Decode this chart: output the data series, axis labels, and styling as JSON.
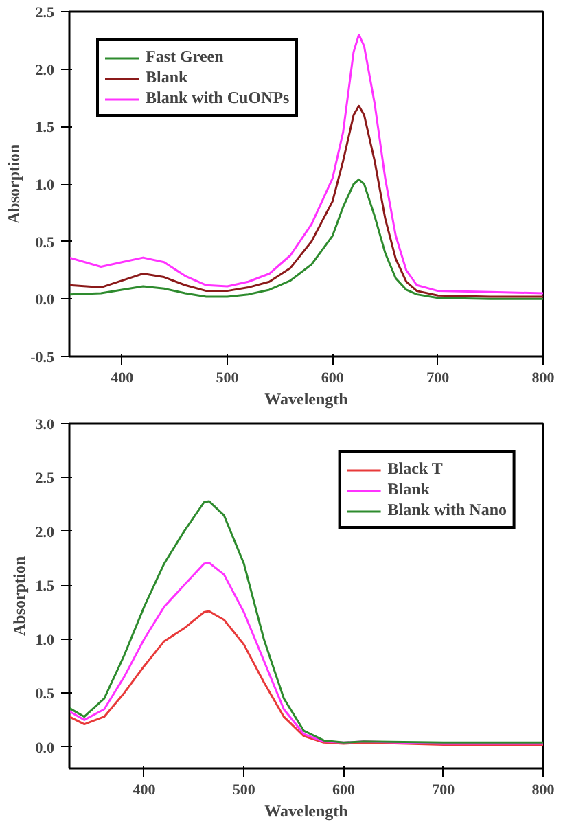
{
  "chart_data": [
    {
      "type": "line",
      "xlabel": "Wavelength",
      "ylabel": "Absorption",
      "xlim": [
        350,
        800
      ],
      "ylim": [
        -0.5,
        2.5
      ],
      "xticks": [
        400,
        500,
        600,
        700,
        800
      ],
      "yticks": [
        {
          "value": -0.5,
          "label": "-0.5"
        },
        {
          "value": 0,
          "label": "0.0"
        },
        {
          "value": 0.5,
          "label": "0.5"
        },
        {
          "value": 1,
          "label": "1.0"
        },
        {
          "value": 1.5,
          "label": "1.5"
        },
        {
          "value": 2,
          "label": "2.0"
        },
        {
          "value": 2.5,
          "label": "2.5"
        }
      ],
      "grid": false,
      "legend": "top left",
      "x": [
        350,
        380,
        400,
        420,
        440,
        460,
        480,
        500,
        520,
        540,
        560,
        580,
        600,
        610,
        620,
        625,
        630,
        640,
        650,
        660,
        670,
        680,
        700,
        750,
        800
      ],
      "series": [
        {
          "name": "Fast Green",
          "color": "#2e8b2e",
          "values": [
            0.04,
            0.05,
            0.08,
            0.11,
            0.09,
            0.05,
            0.02,
            0.02,
            0.04,
            0.08,
            0.16,
            0.3,
            0.55,
            0.8,
            1.0,
            1.04,
            1.0,
            0.72,
            0.4,
            0.18,
            0.08,
            0.04,
            0.01,
            0.0,
            0.0
          ]
        },
        {
          "name": "Blank",
          "color": "#8b1a1a",
          "values": [
            0.12,
            0.1,
            0.16,
            0.22,
            0.19,
            0.12,
            0.07,
            0.07,
            0.1,
            0.15,
            0.27,
            0.5,
            0.85,
            1.2,
            1.6,
            1.68,
            1.6,
            1.2,
            0.7,
            0.35,
            0.15,
            0.07,
            0.03,
            0.02,
            0.02
          ]
        },
        {
          "name": "Blank with CuONPs",
          "color": "#ff33ff",
          "values": [
            0.36,
            0.28,
            0.32,
            0.36,
            0.32,
            0.2,
            0.12,
            0.11,
            0.15,
            0.22,
            0.38,
            0.65,
            1.05,
            1.45,
            2.15,
            2.3,
            2.2,
            1.7,
            1.05,
            0.55,
            0.25,
            0.12,
            0.07,
            0.06,
            0.05
          ]
        }
      ]
    },
    {
      "type": "line",
      "xlabel": "Wavelength",
      "ylabel": "Absorption",
      "xlim": [
        325,
        800
      ],
      "ylim": [
        -0.2,
        3.0
      ],
      "xticks": [
        400,
        500,
        600,
        700,
        800
      ],
      "yticks": [
        {
          "value": 0,
          "label": "0.0"
        },
        {
          "value": 0.5,
          "label": "0.5"
        },
        {
          "value": 1,
          "label": "1.0"
        },
        {
          "value": 1.5,
          "label": "1.5"
        },
        {
          "value": 2,
          "label": "2.0"
        },
        {
          "value": 2.5,
          "label": "2.5"
        },
        {
          "value": 3,
          "label": "3.0"
        }
      ],
      "grid": false,
      "legend": "top right",
      "x": [
        325,
        340,
        360,
        380,
        400,
        420,
        440,
        460,
        465,
        480,
        500,
        520,
        540,
        560,
        580,
        600,
        620,
        700,
        800
      ],
      "series": [
        {
          "name": "Black T",
          "color": "#e83a3a",
          "values": [
            0.28,
            0.21,
            0.28,
            0.5,
            0.75,
            0.98,
            1.1,
            1.25,
            1.26,
            1.18,
            0.95,
            0.6,
            0.28,
            0.1,
            0.04,
            0.03,
            0.04,
            0.02,
            0.02
          ]
        },
        {
          "name": "Blank",
          "color": "#ff33ff",
          "values": [
            0.33,
            0.25,
            0.35,
            0.65,
            1.0,
            1.3,
            1.5,
            1.7,
            1.71,
            1.6,
            1.25,
            0.8,
            0.35,
            0.12,
            0.05,
            0.04,
            0.05,
            0.03,
            0.03
          ]
        },
        {
          "name": "Blank with Nano",
          "color": "#2e8b2e",
          "values": [
            0.36,
            0.28,
            0.45,
            0.85,
            1.3,
            1.7,
            2.0,
            2.27,
            2.28,
            2.15,
            1.7,
            1.0,
            0.45,
            0.15,
            0.06,
            0.04,
            0.05,
            0.04,
            0.04
          ]
        }
      ]
    }
  ]
}
